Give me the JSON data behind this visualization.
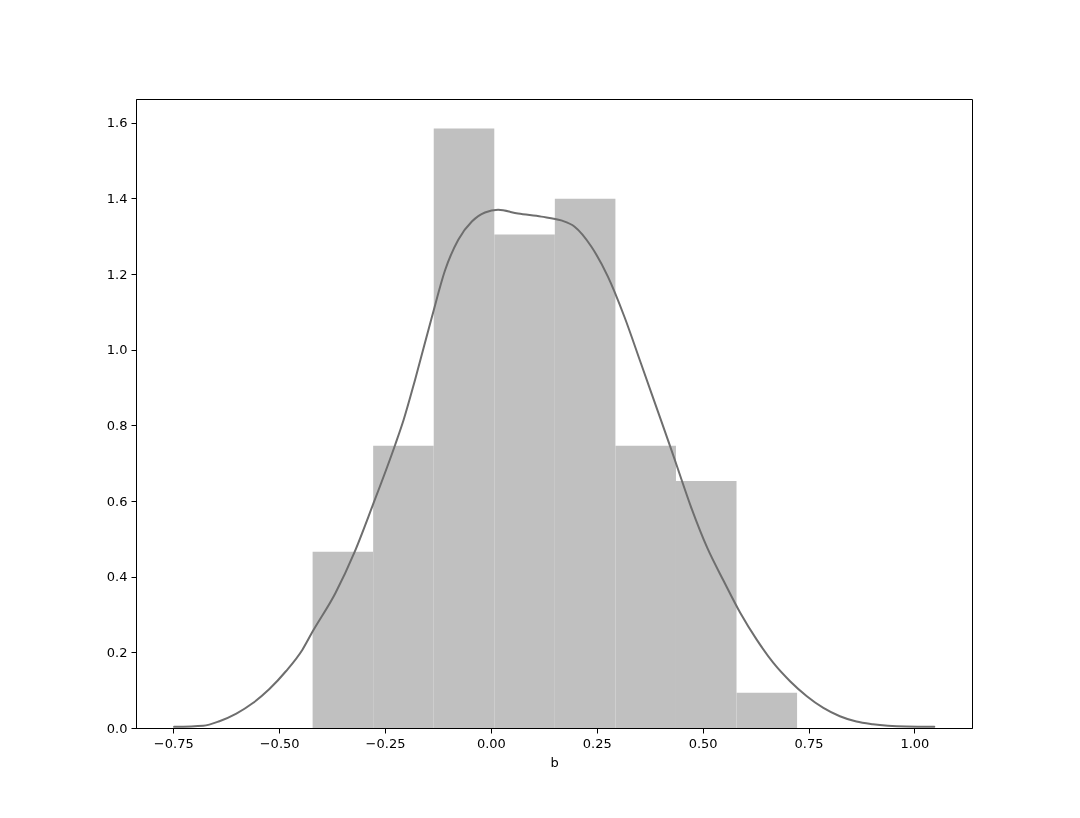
{
  "chart_data": {
    "type": "histogram",
    "xlabel": "b",
    "bins": [
      -0.421,
      -0.278,
      -0.135,
      0.008,
      0.151,
      0.294,
      0.437,
      0.58,
      0.723
    ],
    "series": [
      {
        "color": "#c0c0c0",
        "values": [
          0.466,
          0.746,
          1.585,
          1.305,
          1.399,
          0.746,
          0.653,
          0.093
        ]
      },
      {
        "type": "line",
        "color": "#6e6e6e",
        "x": [
          -0.748,
          -0.679,
          -0.641,
          -0.601,
          -0.562,
          -0.523,
          -0.484,
          -0.445,
          -0.421,
          -0.367,
          -0.322,
          -0.28,
          -0.226,
          -0.206,
          -0.179,
          -0.139,
          -0.108,
          -0.077,
          -0.045,
          -0.014,
          0.017,
          0.064,
          0.119,
          0.166,
          0.197,
          0.237,
          0.276,
          0.315,
          0.354,
          0.393,
          0.421,
          0.44,
          0.472,
          0.511,
          0.55,
          0.589,
          0.628,
          0.667,
          0.707,
          0.746,
          0.785,
          0.824,
          0.863,
          0.902,
          0.981,
          1.047
        ],
        "values": [
          0.003,
          0.006,
          0.018,
          0.038,
          0.066,
          0.103,
          0.15,
          0.207,
          0.255,
          0.357,
          0.465,
          0.586,
          0.749,
          0.815,
          0.921,
          1.088,
          1.211,
          1.291,
          1.339,
          1.363,
          1.37,
          1.36,
          1.352,
          1.342,
          1.326,
          1.273,
          1.194,
          1.088,
          0.965,
          0.841,
          0.752,
          0.69,
          0.586,
          0.476,
          0.388,
          0.304,
          0.233,
          0.172,
          0.123,
          0.084,
          0.053,
          0.031,
          0.017,
          0.01,
          0.004,
          0.003
        ]
      }
    ],
    "xlim": [
      -0.838,
      1.136
    ],
    "ylim": [
      0,
      1.663
    ],
    "xticks": [
      {
        "value": -0.75,
        "label": "−0.75"
      },
      {
        "value": -0.5,
        "label": "−0.50"
      },
      {
        "value": -0.25,
        "label": "−0.25"
      },
      {
        "value": 0,
        "label": "0.00"
      },
      {
        "value": 0.25,
        "label": "0.25"
      },
      {
        "value": 0.5,
        "label": "0.50"
      },
      {
        "value": 0.75,
        "label": "0.75"
      },
      {
        "value": 1,
        "label": "1.00"
      }
    ],
    "yticks": [
      {
        "value": 0,
        "label": "0.0"
      },
      0.2,
      0.4,
      0.6,
      0.8,
      {
        "value": 1,
        "label": "1.0"
      },
      1.2,
      1.4,
      1.6
    ],
    "grid": false
  }
}
